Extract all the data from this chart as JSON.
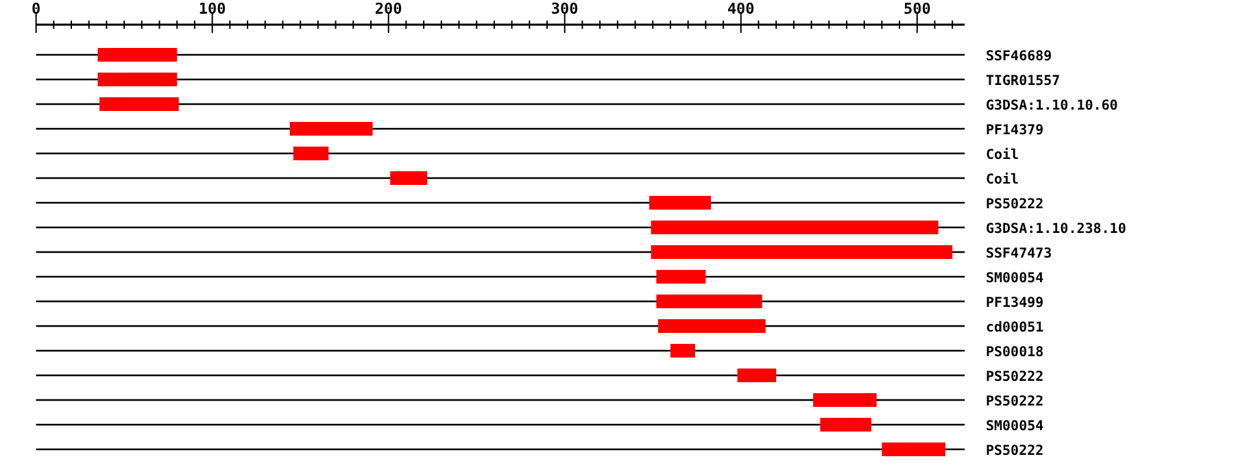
{
  "chart_data": {
    "type": "bar",
    "orientation": "horizontal",
    "color": "#ff0000",
    "grid": "y",
    "categories": [
      "SSF46689",
      "TIGR01557",
      "G3DSA:1.10.10.60",
      "PF14379",
      "Coil",
      "Coil",
      "PS50222",
      "G3DSA:1.10.238.10",
      "SSF47473",
      "SM00054",
      "PF13499",
      "cd00051",
      "PS00018",
      "PS50222",
      "PS50222",
      "SM00054",
      "PS50222"
    ],
    "base": [
      35,
      35,
      36,
      144,
      146,
      201,
      348,
      349,
      349,
      352,
      352,
      353,
      360,
      398,
      441,
      445,
      480
    ],
    "values": [
      45,
      45,
      45,
      47,
      20,
      21,
      35,
      163,
      171,
      28,
      60,
      61,
      14,
      22,
      36,
      29,
      36
    ],
    "xlim": [
      0,
      527
    ],
    "xticks": [
      0,
      {
        "value": 10,
        "label": null
      },
      {
        "value": 20,
        "label": null
      },
      {
        "value": 30,
        "label": null
      },
      {
        "value": 40,
        "label": null
      },
      {
        "value": 50,
        "label": null
      },
      {
        "value": 60,
        "label": null
      },
      {
        "value": 70,
        "label": null
      },
      {
        "value": 80,
        "label": null
      },
      {
        "value": 90,
        "label": null
      },
      100,
      {
        "value": 110,
        "label": null
      },
      {
        "value": 120,
        "label": null
      },
      {
        "value": 130,
        "label": null
      },
      {
        "value": 140,
        "label": null
      },
      {
        "value": 150,
        "label": null
      },
      {
        "value": 160,
        "label": null
      },
      {
        "value": 170,
        "label": null
      },
      {
        "value": 180,
        "label": null
      },
      {
        "value": 190,
        "label": null
      },
      200,
      {
        "value": 210,
        "label": null
      },
      {
        "value": 220,
        "label": null
      },
      {
        "value": 230,
        "label": null
      },
      {
        "value": 240,
        "label": null
      },
      {
        "value": 250,
        "label": null
      },
      {
        "value": 260,
        "label": null
      },
      {
        "value": 270,
        "label": null
      },
      {
        "value": 280,
        "label": null
      },
      {
        "value": 290,
        "label": null
      },
      300,
      {
        "value": 310,
        "label": null
      },
      {
        "value": 320,
        "label": null
      },
      {
        "value": 330,
        "label": null
      },
      {
        "value": 340,
        "label": null
      },
      {
        "value": 350,
        "label": null
      },
      {
        "value": 360,
        "label": null
      },
      {
        "value": 370,
        "label": null
      },
      {
        "value": 380,
        "label": null
      },
      {
        "value": 390,
        "label": null
      },
      400,
      {
        "value": 410,
        "label": null
      },
      {
        "value": 420,
        "label": null
      },
      {
        "value": 430,
        "label": null
      },
      {
        "value": 440,
        "label": null
      },
      {
        "value": 450,
        "label": null
      },
      {
        "value": 460,
        "label": null
      },
      {
        "value": 470,
        "label": null
      },
      {
        "value": 480,
        "label": null
      },
      {
        "value": 490,
        "label": null
      },
      500,
      {
        "value": 510,
        "label": null
      },
      {
        "value": 520,
        "label": null
      }
    ]
  }
}
